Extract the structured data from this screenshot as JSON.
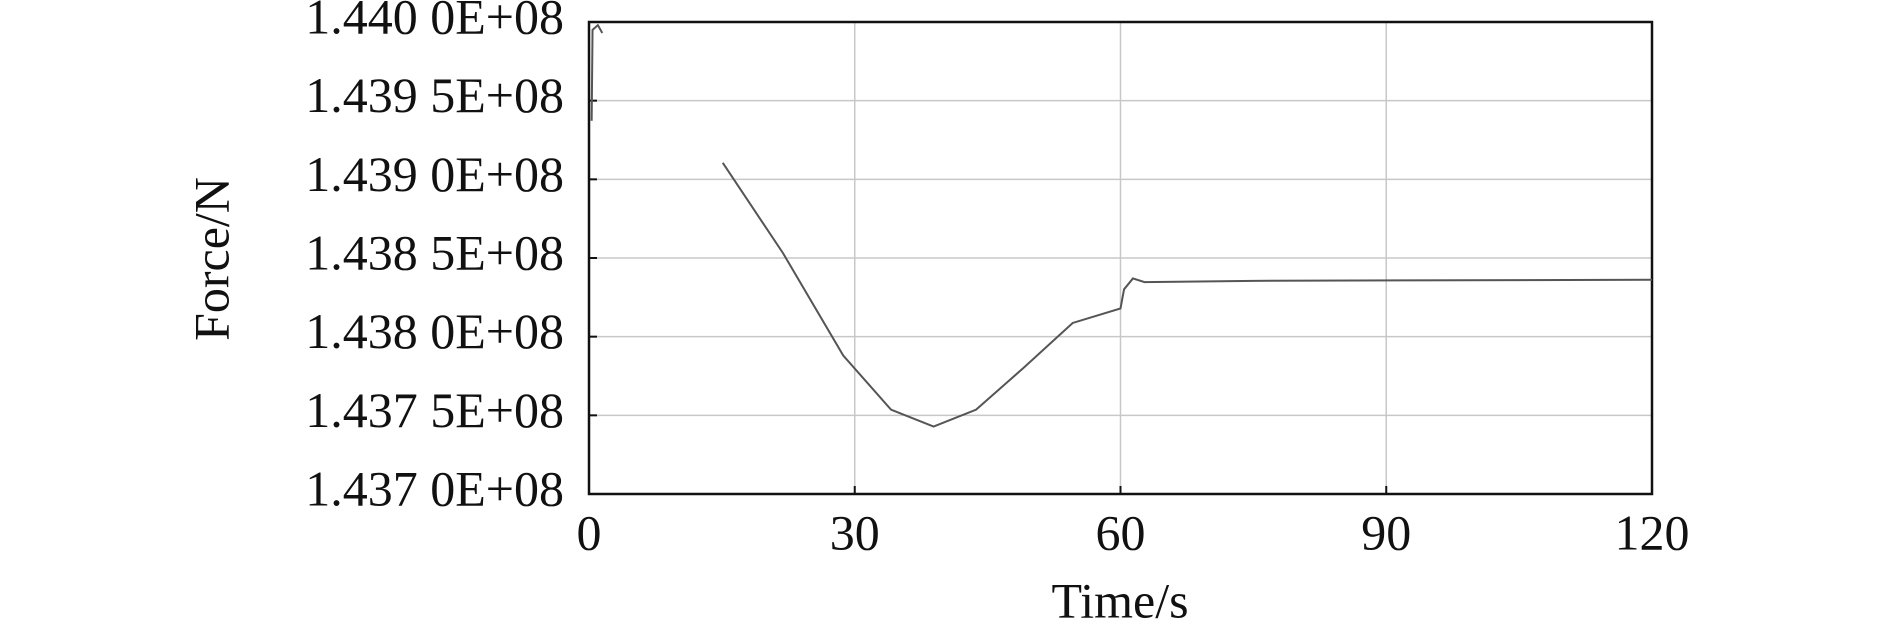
{
  "chart_data": {
    "type": "line",
    "x_label": "Time/s",
    "y_label": "Force/N",
    "xlim": [
      0,
      120
    ],
    "xticks": [
      0,
      30,
      60,
      90,
      120
    ],
    "ylim": [
      143700000,
      144000000
    ],
    "yticks": [
      {
        "value": 143700000,
        "label": "1.437 0E+08"
      },
      {
        "value": 143750000,
        "label": "1.437 5E+08"
      },
      {
        "value": 143800000,
        "label": "1.438 0E+08"
      },
      {
        "value": 143850000,
        "label": "1.438 5E+08"
      },
      {
        "value": 143900000,
        "label": "1.439 0E+08"
      },
      {
        "value": 143950000,
        "label": "1.439 5E+08"
      },
      {
        "value": 144000000,
        "label": "1.440 0E+08"
      }
    ],
    "grid": true,
    "series": [
      {
        "color": "#555555",
        "x": [
          0.3,
          0.4,
          1.0,
          1.5,
          7.9,
          15.1,
          21.9,
          28.7,
          34.1,
          38.9,
          43.7,
          49.1,
          54.6,
          60,
          60.4,
          61.4,
          62.7,
          75,
          120
        ],
        "values": [
          143937200,
          143995000,
          143998000,
          143993000,
          null,
          143910500,
          143853100,
          143788000,
          143753600,
          143742900,
          143753600,
          143780400,
          143808700,
          143817900,
          143830100,
          143837000,
          143834700,
          143835500,
          143836200
        ]
      }
    ]
  }
}
